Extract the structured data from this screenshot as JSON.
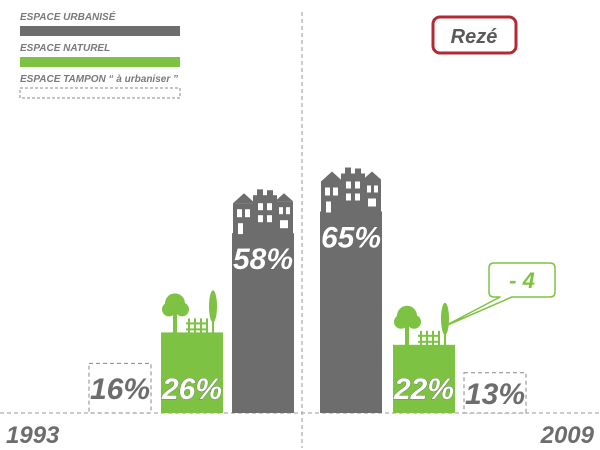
{
  "title": "Rezé",
  "legend": [
    {
      "label": "ESPACE URBANISÉ",
      "color": "#6d6d6d",
      "style": "solid"
    },
    {
      "label": "ESPACE NATUREL",
      "color": "#7dc242",
      "style": "solid"
    },
    {
      "label": "ESPACE TAMPON “ à urbaniser ”",
      "color": "#8a8a8a",
      "style": "dashed"
    }
  ],
  "colors": {
    "urbanise": "#6d6d6d",
    "naturel": "#7dc242",
    "tampon": "#8a8a8a",
    "title_border": "#b22a36"
  },
  "annotation": {
    "text": "- 4",
    "icon": "speech-callout"
  },
  "chart_data": {
    "type": "bar",
    "title": "Rezé",
    "categories": [
      "1993",
      "2009"
    ],
    "series": [
      {
        "name": "ESPACE TAMPON “ à urbaniser ”",
        "values": [
          16,
          13
        ],
        "labels": [
          "16%",
          "13%"
        ],
        "icon": "none"
      },
      {
        "name": "ESPACE NATUREL",
        "values": [
          26,
          22
        ],
        "labels": [
          "26%",
          "22%"
        ],
        "icon": "tree-icon"
      },
      {
        "name": "ESPACE URBANISÉ",
        "values": [
          58,
          65
        ],
        "labels": [
          "58%",
          "65%"
        ],
        "icon": "house-icon"
      }
    ],
    "xlabel": "",
    "ylabel": "",
    "ylim": [
      0,
      100
    ],
    "grid": false,
    "legend_position": "top-left"
  }
}
